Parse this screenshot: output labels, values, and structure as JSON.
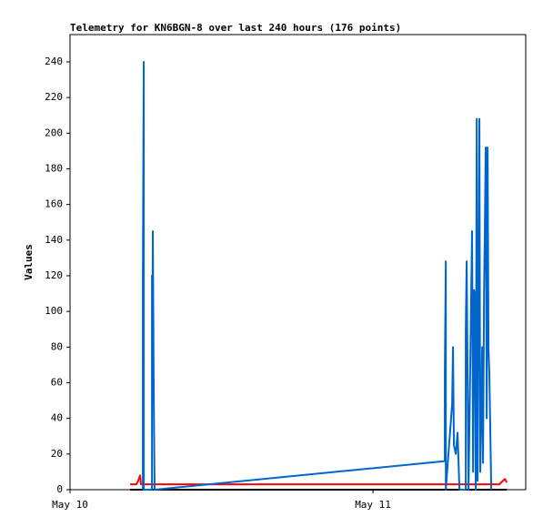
{
  "chart_data": {
    "type": "line",
    "title": "Telemetry for KN6BGN-8 over last 240 hours (176 points)",
    "ylabel": "Values",
    "xlim": [
      0,
      36.1
    ],
    "xticks": [
      {
        "value": 0,
        "label": "May 10"
      },
      {
        "value": 24,
        "label": "May 11"
      }
    ],
    "ylim": [
      0,
      255.3
    ],
    "yticks": [
      0,
      20,
      40,
      60,
      80,
      100,
      120,
      140,
      160,
      180,
      200,
      220,
      240
    ],
    "series": [
      {
        "color": "#000000",
        "x": [
          4.76,
          34.6
        ],
        "values": [
          0,
          0
        ]
      },
      {
        "color": "#ff0000",
        "x": [
          4.76,
          5.26,
          5.4,
          5.55,
          5.62,
          5.7,
          30.6,
          34.0,
          34.45,
          34.6
        ],
        "values": [
          3,
          3,
          5,
          8,
          3,
          3,
          3,
          3,
          6,
          4
        ]
      },
      {
        "color": "#0066cc",
        "x": [
          5.77,
          5.77,
          5.84,
          5.84,
          6.49,
          6.49,
          6.52,
          6.56,
          6.63,
          6.7,
          29.69,
          29.69,
          29.77,
          29.77,
          30.27,
          30.34,
          30.41,
          30.56,
          30.7,
          30.85,
          31.35,
          31.35,
          31.42,
          31.57,
          31.71,
          31.85,
          31.93,
          32.0,
          32.07,
          32.14,
          32.22,
          32.29,
          32.36,
          32.43,
          32.5,
          32.58,
          32.65,
          32.72,
          32.8,
          32.86,
          32.93,
          33.01,
          33.08,
          33.15,
          33.22,
          33.37
        ],
        "values": [
          0,
          120,
          240,
          0,
          0,
          120,
          72,
          145,
          55,
          0,
          16,
          65,
          128,
          0,
          48,
          80,
          25,
          20,
          32,
          0,
          0,
          88,
          128,
          0,
          72,
          145,
          10,
          112,
          110,
          0,
          208,
          5,
          104,
          208,
          10,
          40,
          80,
          15,
          112,
          145,
          192,
          40,
          192,
          80,
          65,
          0
        ]
      }
    ]
  }
}
